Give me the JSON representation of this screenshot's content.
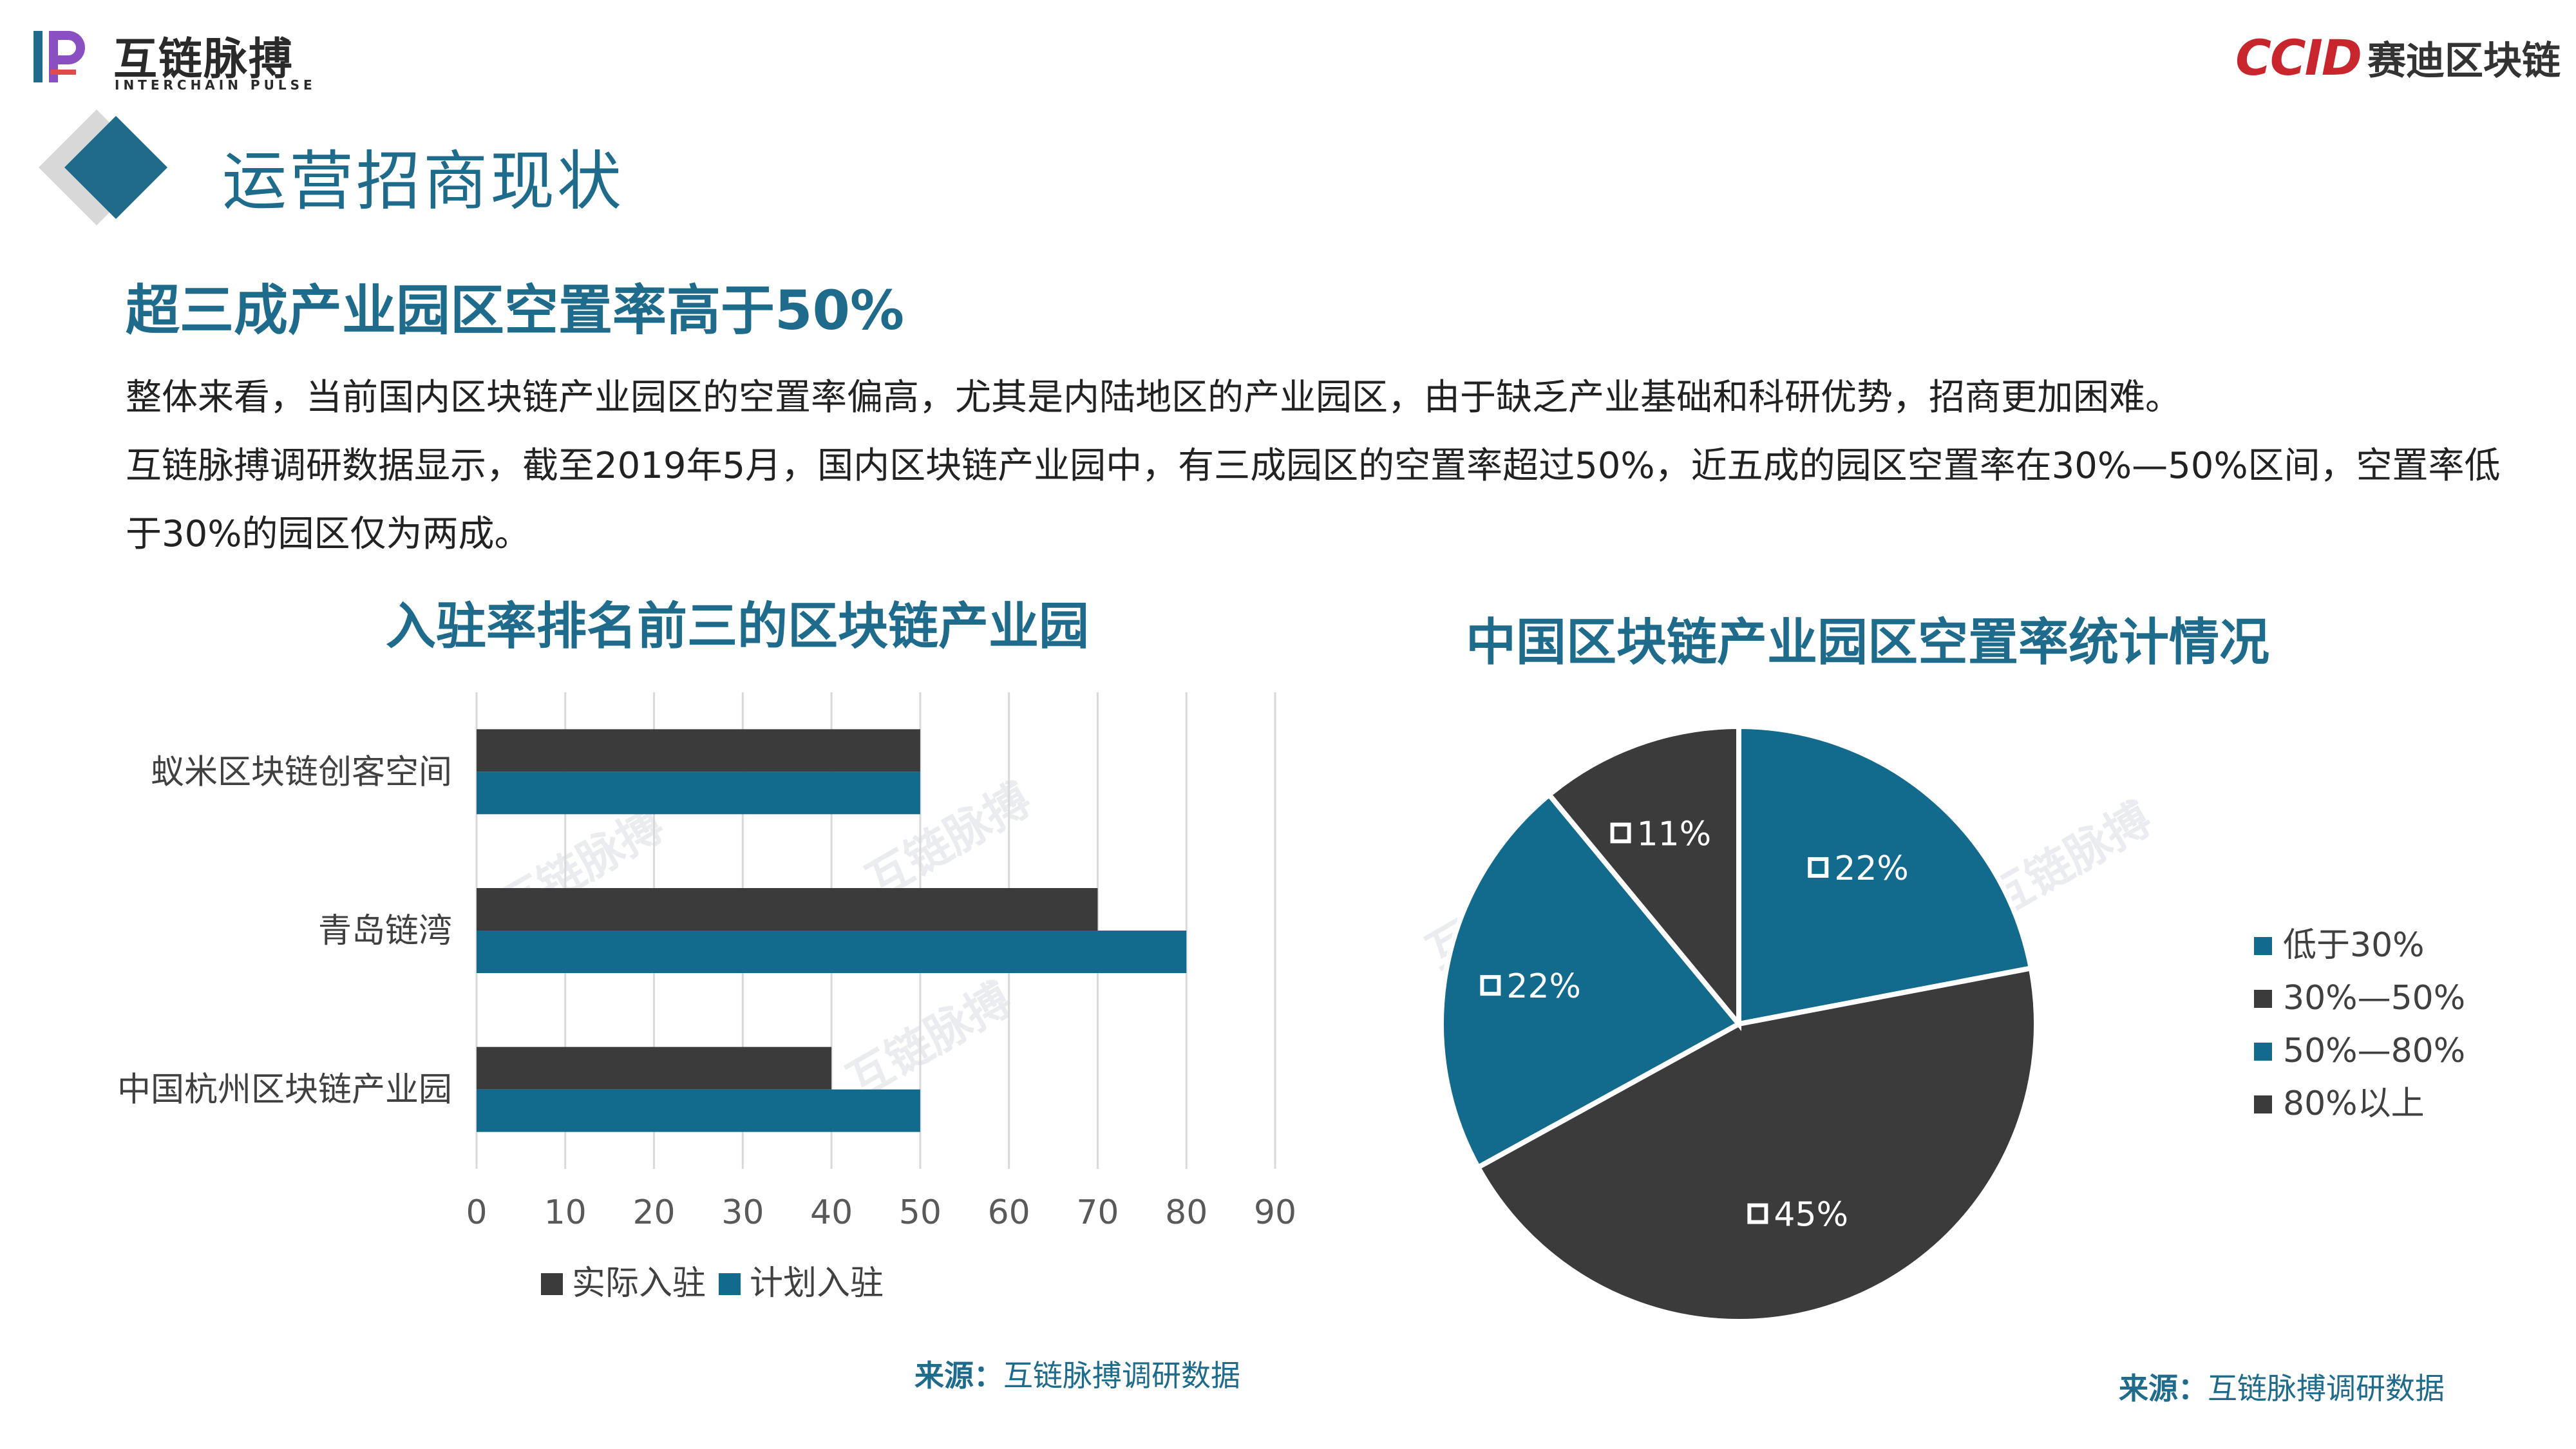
{
  "header": {
    "logo_left_cn": "互链脉搏",
    "logo_left_en": "INTERCHAIN PULSE",
    "logo_right_ccid": "CCID",
    "logo_right_cn": "赛迪区块链"
  },
  "section_title": "运营招商现状",
  "headline": "超三成产业园区空置率高于50%",
  "body": {
    "p1": "整体来看，当前国内区块链产业园区的空置率偏高，尤其是内陆地区的产业园区，由于缺乏产业基础和科研优势，招商更加困难。",
    "p2": "互链脉搏调研数据显示，截至2019年5月，国内区块链产业园中，有三成园区的空置率超过50%，近五成的园区空置率在30%—50%区间，空置率低于30%的园区仅为两成。"
  },
  "colors": {
    "teal": "#126a8c",
    "dark": "#3b3b3b",
    "title_blue": "#1f6b8c",
    "brand_red": "#c8262c"
  },
  "chart_data": [
    {
      "type": "bar",
      "orientation": "horizontal",
      "title": "入驻率排名前三的区块链产业园",
      "categories": [
        "蚁米区块链创客空间",
        "青岛链湾",
        "中国杭州区块链产业园"
      ],
      "series": [
        {
          "name": "实际入驻",
          "values": [
            50,
            70,
            40
          ],
          "color": "#3b3b3b"
        },
        {
          "name": "计划入驻",
          "values": [
            50,
            80,
            50
          ],
          "color": "#126a8c"
        }
      ],
      "xlim": [
        0,
        90
      ],
      "xticks": [
        "0",
        "10",
        "20",
        "30",
        "40",
        "50",
        "60",
        "70",
        "80",
        "90"
      ],
      "grid": true,
      "legend": "bottom"
    },
    {
      "type": "pie",
      "title": "中国区块链产业园区空置率统计情况",
      "labels": [
        "低于30%",
        "30%—50%",
        "50%—80%",
        "80%以上"
      ],
      "values": [
        22,
        45,
        22,
        11
      ],
      "value_labels": [
        "22%",
        "45%",
        "22%",
        "11%"
      ],
      "colors": [
        "#126a8c",
        "#3b3b3b",
        "#126a8c",
        "#3b3b3b"
      ],
      "legend": "right"
    }
  ],
  "sources": {
    "bar": {
      "label": "来源：",
      "text": "互链脉搏调研数据"
    },
    "pie": {
      "label": "来源：",
      "text": "互链脉搏调研数据"
    }
  }
}
